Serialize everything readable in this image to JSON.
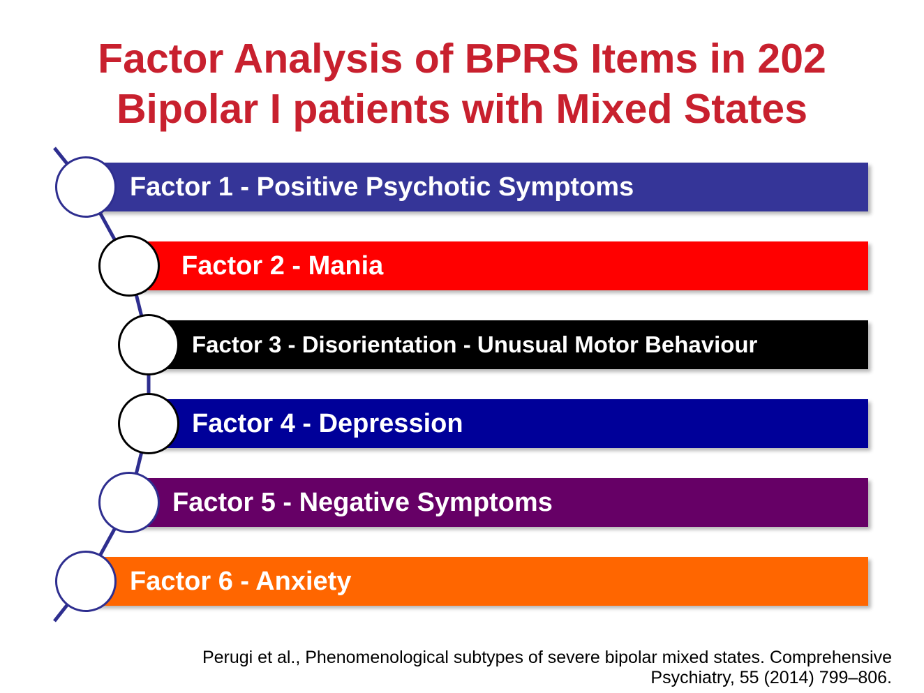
{
  "title": {
    "line1": "Factor Analysis of BPRS Items in 202",
    "line2": "Bipolar I patients with Mixed States"
  },
  "factors": [
    {
      "label": "Factor 1 - Positive Psychotic Symptoms",
      "color": "#353598",
      "circle_border": "#2e2e8f"
    },
    {
      "label": "Factor 2 - Mania",
      "color": "#ff0000",
      "circle_border": "#000000"
    },
    {
      "label": "Factor 3 - Disorientation - Unusual Motor  Behaviour",
      "color": "#000000",
      "circle_border": "#000000"
    },
    {
      "label": "Factor 4 - Depression",
      "color": "#000099",
      "circle_border": "#000000"
    },
    {
      "label": "Factor 5 - Negative Symptoms",
      "color": "#660066",
      "circle_border": "#2e2e8f"
    },
    {
      "label": "Factor 6 - Anxiety",
      "color": "#ff6600",
      "circle_border": "#2e2e8f"
    }
  ],
  "connector_color": "#2e2e8f",
  "citation": {
    "line1": "Perugi et al., Phenomenological subtypes of severe bipolar mixed states. Comprehensive",
    "line2": "Psychiatry, 55 (2014) 799–806."
  }
}
